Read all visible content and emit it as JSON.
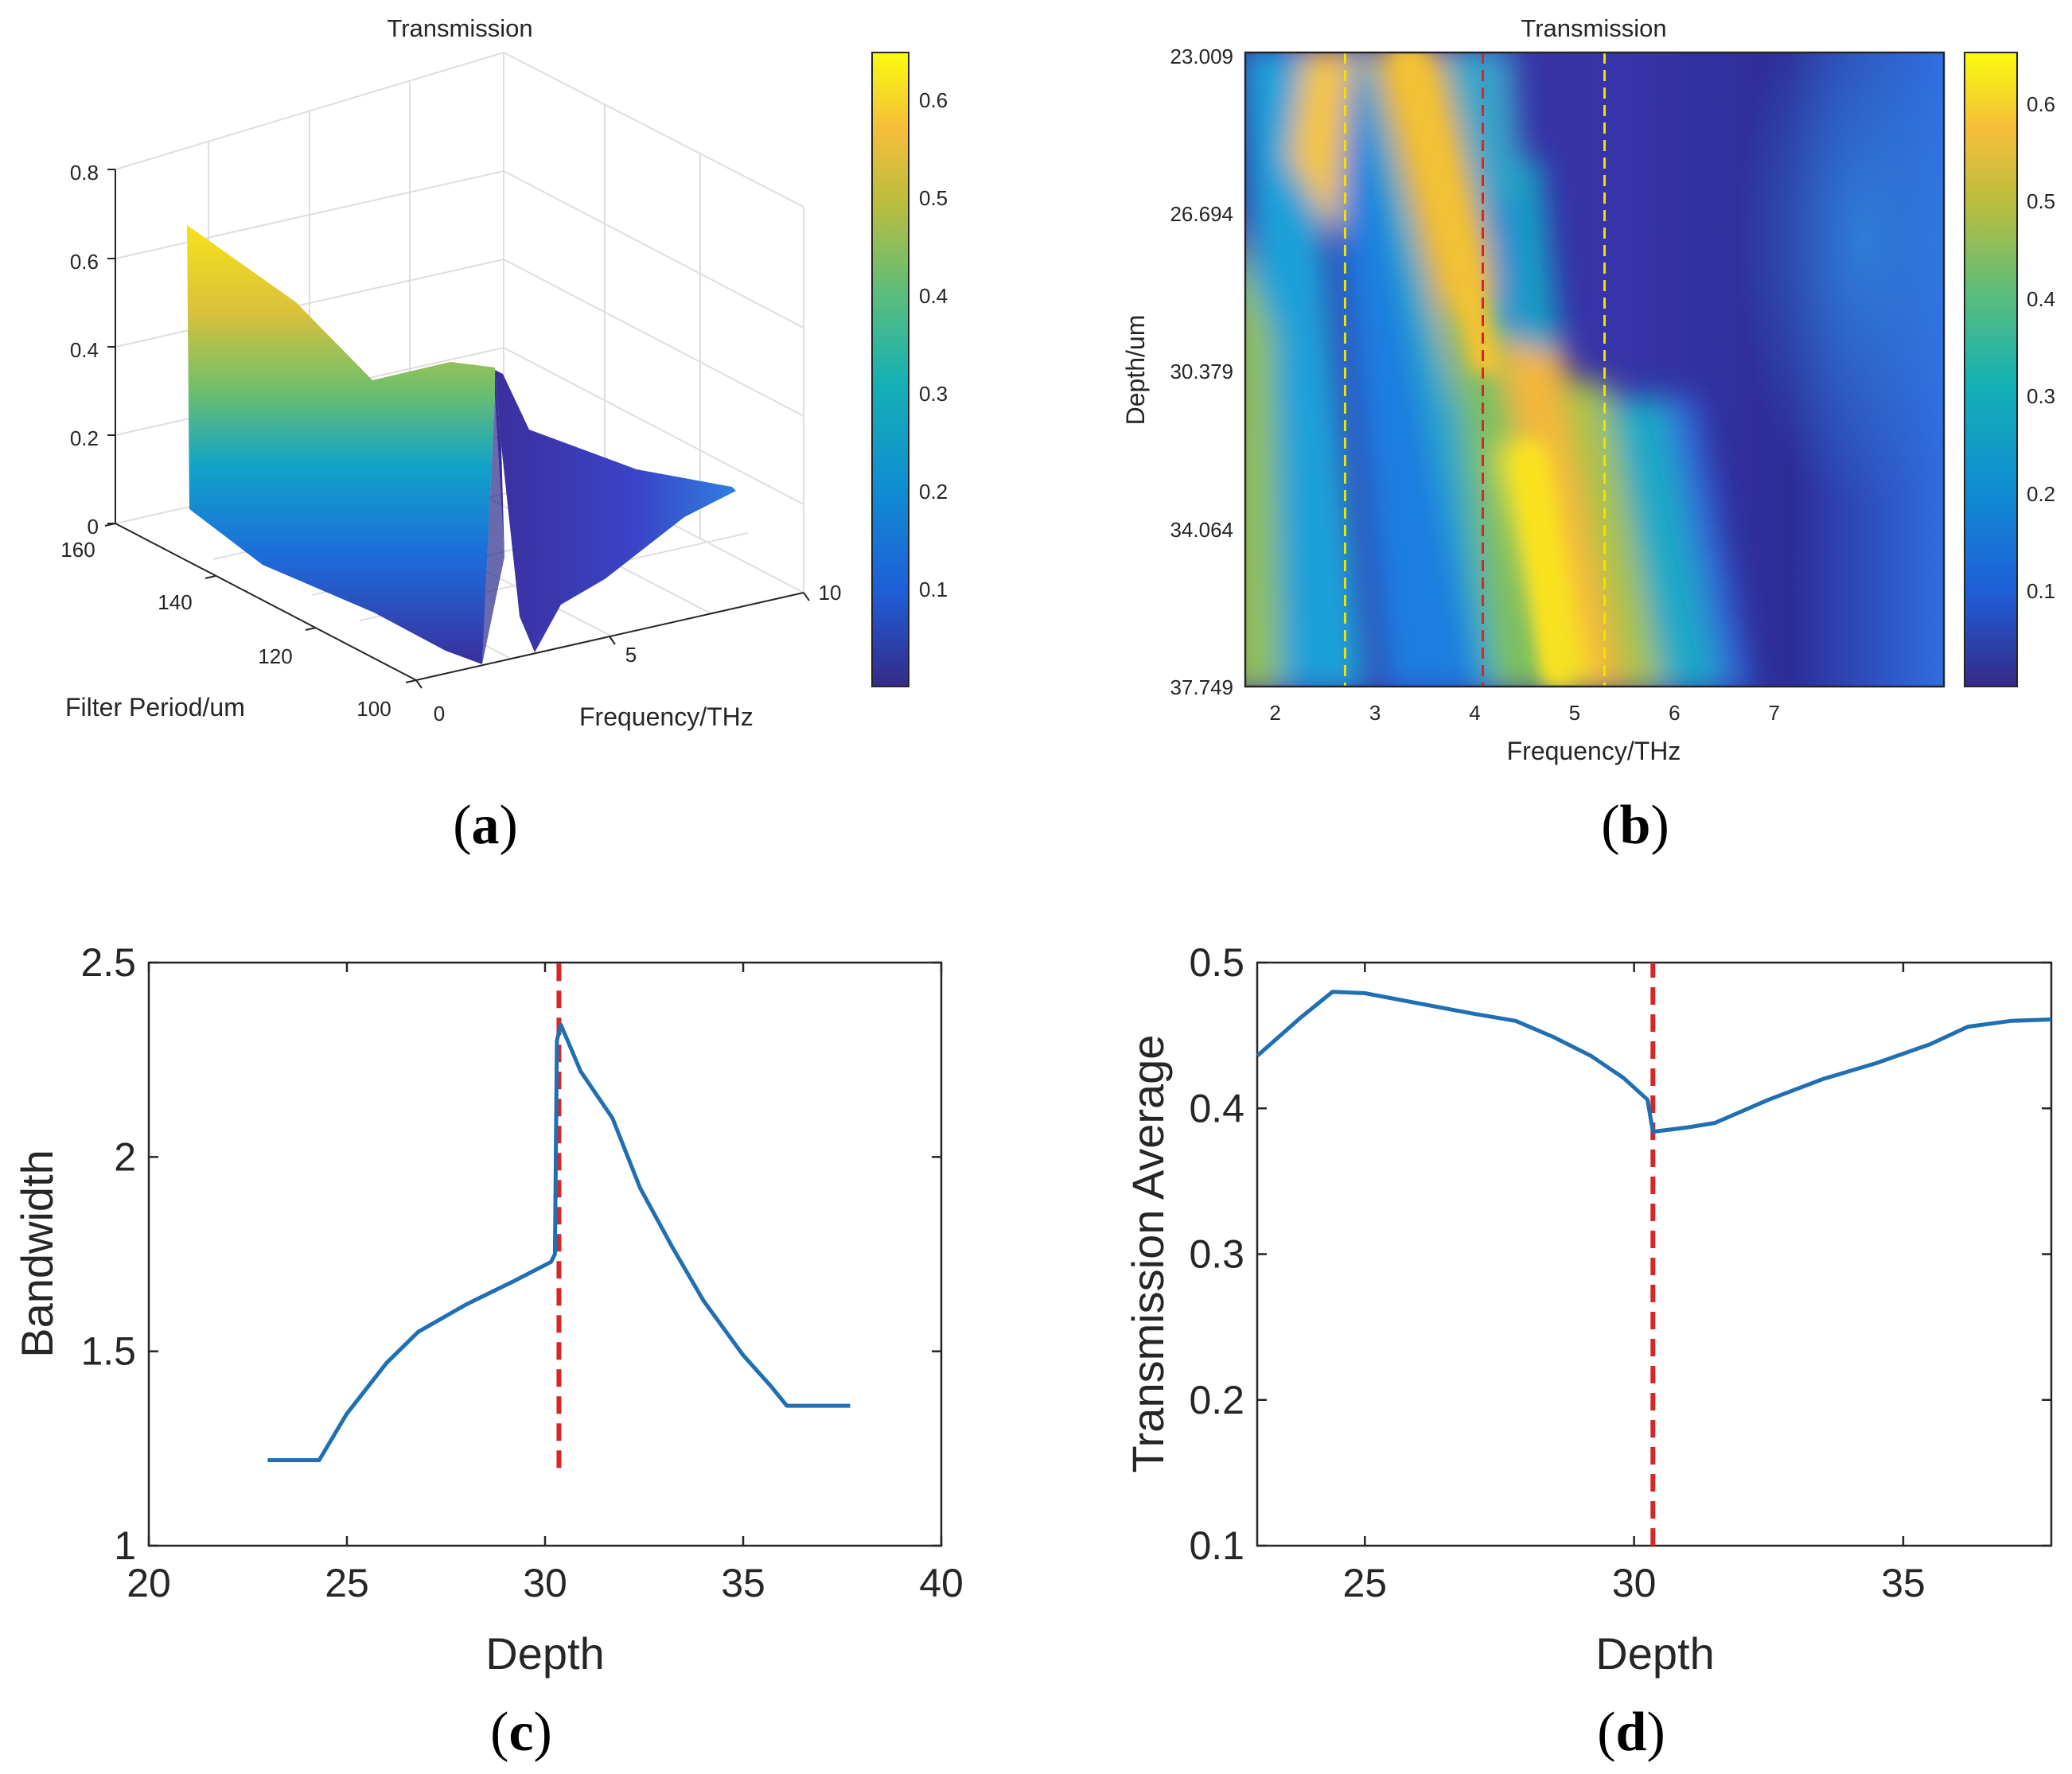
{
  "colors": {
    "line": "#1f6fb2",
    "marker": "#d62728",
    "axis": "#262626",
    "yellow_marker": "#f2e200"
  },
  "panels": {
    "a": {
      "label_letter": "a"
    },
    "b": {
      "label_letter": "b"
    },
    "c": {
      "label_letter": "c"
    },
    "d": {
      "label_letter": "d"
    }
  },
  "chart_data": [
    {
      "id": "a",
      "type": "surface",
      "title": "Transmission",
      "xlabel": "Frequency/THz",
      "ylabel": "Filter Period/um",
      "zlabel": "",
      "x_ticks": [
        "0",
        "5",
        "10"
      ],
      "y_ticks": [
        "160",
        "140",
        "120",
        "100"
      ],
      "z_ticks": [
        "0",
        "0.2",
        "0.4",
        "0.6",
        "0.8"
      ],
      "xlim": [
        0,
        10
      ],
      "ylim": [
        100,
        160
      ],
      "zlim": [
        0,
        0.8
      ],
      "colorbar_ticks": [
        "0.1",
        "0.2",
        "0.3",
        "0.4",
        "0.5",
        "0.6"
      ],
      "colorbar_range": [
        0,
        0.65
      ]
    },
    {
      "id": "b",
      "type": "heatmap",
      "title": "Transmission",
      "xlabel": "Frequency/THz",
      "ylabel": "Depth/um",
      "x_ticks": [
        "2",
        "3",
        "4",
        "5",
        "6",
        "7"
      ],
      "y_ticks": [
        "23.009",
        "26.694",
        "30.379",
        "34.064",
        "37.749"
      ],
      "xlim": [
        1.7,
        8.7
      ],
      "ylim": [
        23.009,
        37.749
      ],
      "markers": [
        {
          "x": 2.7,
          "color": "yellow"
        },
        {
          "x": 4.08,
          "color": "red"
        },
        {
          "x": 5.3,
          "color": "yellow"
        }
      ],
      "colorbar_ticks": [
        "0.1",
        "0.2",
        "0.3",
        "0.4",
        "0.5",
        "0.6"
      ],
      "colorbar_range": [
        0,
        0.65
      ]
    },
    {
      "id": "c",
      "type": "line",
      "xlabel": "Depth",
      "ylabel": "Bandwidth",
      "xlim": [
        20,
        40
      ],
      "ylim": [
        1,
        2.5
      ],
      "x_ticks": [
        "20",
        "25",
        "30",
        "35",
        "40"
      ],
      "y_ticks": [
        "1",
        "1.5",
        "2",
        "2.5"
      ],
      "series": [
        {
          "name": "Bandwidth",
          "x": [
            23.0,
            24.3,
            25.0,
            26.0,
            26.8,
            28.0,
            29.2,
            30.15,
            30.25,
            30.3,
            30.4,
            30.9,
            31.7,
            32.4,
            33.2,
            34.0,
            35.0,
            35.7,
            36.1,
            37.7
          ],
          "y": [
            1.22,
            1.22,
            1.34,
            1.47,
            1.55,
            1.62,
            1.68,
            1.73,
            1.75,
            2.3,
            2.34,
            2.22,
            2.1,
            1.92,
            1.77,
            1.63,
            1.49,
            1.41,
            1.36,
            1.36
          ]
        }
      ],
      "vline": {
        "x": 30.35,
        "y_from": 1.2,
        "y_to": 2.5
      }
    },
    {
      "id": "d",
      "type": "line",
      "xlabel": "Depth",
      "ylabel": "Transmission Average",
      "xlim": [
        23,
        37.75
      ],
      "ylim": [
        0.1,
        0.5
      ],
      "x_ticks": [
        "25",
        "30",
        "35"
      ],
      "y_ticks": [
        "0.1",
        "0.2",
        "0.3",
        "0.4",
        "0.5"
      ],
      "series": [
        {
          "name": "Transmission Average",
          "x": [
            23.0,
            23.8,
            24.4,
            25.0,
            26.0,
            27.0,
            27.8,
            28.5,
            29.2,
            29.8,
            30.25,
            30.35,
            31.0,
            31.5,
            32.5,
            33.5,
            34.5,
            35.5,
            36.2,
            37.0,
            37.75
          ],
          "y": [
            0.436,
            0.462,
            0.48,
            0.479,
            0.472,
            0.465,
            0.46,
            0.449,
            0.436,
            0.421,
            0.406,
            0.384,
            0.387,
            0.39,
            0.406,
            0.42,
            0.431,
            0.444,
            0.456,
            0.46,
            0.461
          ]
        }
      ],
      "vline": {
        "x": 30.35,
        "y_from": 0.1,
        "y_to": 0.5
      }
    }
  ]
}
